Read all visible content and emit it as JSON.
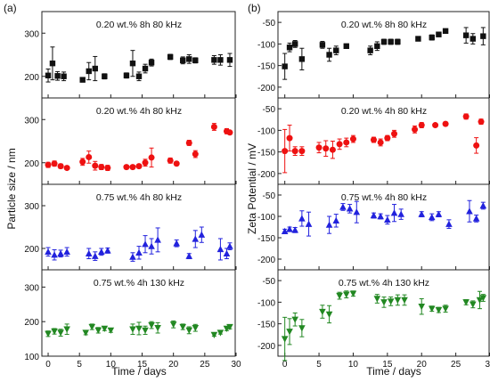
{
  "figure": {
    "panel_a_label": "(a)",
    "panel_b_label": "(b)",
    "left_ylabel": "Particle size / nm",
    "right_ylabel": "Zeta Potential / mV",
    "xlabel": "Time / days"
  },
  "chart_data": [
    {
      "type": "scatter",
      "panel": "a",
      "subplot": 1,
      "annotation": "0.20 wt.% 8h 80 kHz",
      "color": "#111111",
      "marker": "square",
      "xlim": [
        -1,
        30
      ],
      "ylim": [
        150,
        350
      ],
      "xticks": [
        0,
        5,
        10,
        15,
        20,
        25,
        30
      ],
      "yticks": [
        200,
        300
      ],
      "x": [
        0,
        0.7,
        1.5,
        2.5,
        5.5,
        6.5,
        7.5,
        9,
        12.5,
        13.5,
        14.5,
        15.5,
        16.5,
        19.5,
        21.5,
        22.5,
        23.5,
        26.5,
        27.5,
        29
      ],
      "y": [
        202,
        230,
        201,
        200,
        192,
        212,
        218,
        200,
        202,
        230,
        200,
        218,
        232,
        245,
        237,
        240,
        237,
        238,
        238,
        238
      ],
      "err": [
        15,
        38,
        10,
        10,
        5,
        20,
        28,
        6,
        6,
        30,
        10,
        10,
        8,
        6,
        8,
        10,
        6,
        10,
        12,
        15
      ]
    },
    {
      "type": "scatter",
      "panel": "a",
      "subplot": 2,
      "annotation": "0.20 wt.% 4h 80 kHz",
      "color": "#ee1111",
      "marker": "circle",
      "xlim": [
        -1,
        30
      ],
      "ylim": [
        150,
        350
      ],
      "xticks": [
        0,
        5,
        10,
        15,
        20,
        25,
        30
      ],
      "yticks": [
        200,
        300
      ],
      "x": [
        0,
        1,
        2,
        3,
        5.5,
        6.5,
        7.5,
        8.5,
        9.5,
        12.5,
        13.5,
        14.5,
        15.5,
        16.5,
        19.5,
        20.5,
        22.5,
        23.5,
        26.5,
        28.5,
        29
      ],
      "y": [
        195,
        198,
        192,
        188,
        202,
        213,
        193,
        190,
        188,
        190,
        190,
        192,
        200,
        212,
        205,
        198,
        246,
        220,
        283,
        273,
        270
      ],
      "err": [
        6,
        6,
        5,
        4,
        8,
        14,
        10,
        6,
        6,
        4,
        4,
        4,
        8,
        22,
        6,
        4,
        6,
        8,
        8,
        6,
        4
      ]
    },
    {
      "type": "scatter",
      "panel": "a",
      "subplot": 3,
      "annotation": "0.75 wt.% 4h 80 kHz",
      "color": "#2222dd",
      "marker": "triangle-up",
      "xlim": [
        -1,
        30
      ],
      "ylim": [
        150,
        350
      ],
      "xticks": [
        0,
        5,
        10,
        15,
        20,
        25,
        30
      ],
      "yticks": [
        200,
        300
      ],
      "x": [
        0,
        1,
        2,
        3,
        6.5,
        7.5,
        8.5,
        9.5,
        13.5,
        14.5,
        15.5,
        16.5,
        17.5,
        20.5,
        22.5,
        23.5,
        24.5,
        27.5,
        28.5,
        29
      ],
      "y": [
        192,
        185,
        188,
        192,
        188,
        182,
        192,
        195,
        180,
        190,
        210,
        205,
        220,
        212,
        182,
        222,
        232,
        198,
        188,
        205
      ],
      "err": [
        10,
        12,
        8,
        10,
        12,
        10,
        8,
        6,
        10,
        15,
        20,
        18,
        28,
        8,
        6,
        20,
        18,
        25,
        12,
        8
      ]
    },
    {
      "type": "scatter",
      "panel": "a",
      "subplot": 4,
      "annotation": "0.75 wt.% 4h 130 kHz",
      "color": "#228822",
      "marker": "triangle-down",
      "xlim": [
        -1,
        30
      ],
      "ylim": [
        100,
        350
      ],
      "xticks": [
        0,
        5,
        10,
        15,
        20,
        25,
        30
      ],
      "yticks": [
        100,
        200,
        300
      ],
      "x": [
        0,
        1,
        2,
        3,
        6,
        7,
        8,
        9,
        10,
        13.5,
        14.5,
        15.5,
        16.5,
        17.5,
        20,
        21.5,
        22.5,
        23.5,
        26.5,
        27.5,
        28.5,
        29
      ],
      "y": [
        165,
        172,
        168,
        178,
        168,
        185,
        175,
        180,
        175,
        178,
        180,
        175,
        190,
        182,
        192,
        185,
        175,
        182,
        162,
        168,
        180,
        185
      ],
      "err": [
        8,
        8,
        10,
        15,
        6,
        8,
        8,
        6,
        6,
        15,
        18,
        12,
        10,
        15,
        10,
        8,
        10,
        10,
        4,
        4,
        6,
        6
      ]
    },
    {
      "type": "scatter",
      "panel": "b",
      "subplot": 1,
      "annotation": "0.20 wt.% 8h 80 kHz",
      "color": "#111111",
      "marker": "square",
      "xlim": [
        -1,
        30
      ],
      "ylim": [
        -225,
        -25
      ],
      "xticks": [
        0,
        5,
        10,
        15,
        20,
        25,
        30
      ],
      "yticks": [
        -200,
        -150,
        -100,
        -50
      ],
      "x": [
        0,
        0.7,
        1.5,
        2.5,
        5.5,
        6.5,
        7.5,
        9,
        12.5,
        13.5,
        14.5,
        15.5,
        16.5,
        19.5,
        21.5,
        22.5,
        23.5,
        26.5,
        27.5,
        29
      ],
      "y": [
        -152,
        -108,
        -100,
        -135,
        -102,
        -125,
        -115,
        -105,
        -115,
        -105,
        -95,
        -95,
        -95,
        -88,
        -85,
        -78,
        -70,
        -80,
        -88,
        -82
      ],
      "err": [
        30,
        10,
        8,
        25,
        8,
        15,
        10,
        5,
        10,
        10,
        6,
        6,
        6,
        5,
        6,
        5,
        5,
        18,
        12,
        20
      ]
    },
    {
      "type": "scatter",
      "panel": "b",
      "subplot": 2,
      "annotation": "0.20 wt.% 4h 80 kHz",
      "color": "#ee1111",
      "marker": "circle",
      "xlim": [
        -1,
        30
      ],
      "ylim": [
        -225,
        -25
      ],
      "xticks": [
        0,
        5,
        10,
        15,
        20,
        25,
        30
      ],
      "yticks": [
        -200,
        -150,
        -100,
        -50
      ],
      "x": [
        0,
        0.7,
        1.5,
        2.5,
        5,
        6,
        7,
        8,
        9,
        10,
        13,
        14,
        15,
        16,
        19,
        20,
        22,
        23.5,
        26.5,
        28,
        28.7
      ],
      "y": [
        -148,
        -118,
        -148,
        -148,
        -140,
        -142,
        -145,
        -132,
        -128,
        -120,
        -122,
        -128,
        -118,
        -108,
        -98,
        -88,
        -88,
        -85,
        -68,
        -135,
        -80
      ],
      "err": [
        50,
        30,
        10,
        10,
        12,
        18,
        20,
        12,
        10,
        8,
        6,
        8,
        6,
        8,
        8,
        6,
        4,
        4,
        6,
        18,
        6
      ]
    },
    {
      "type": "scatter",
      "panel": "b",
      "subplot": 3,
      "annotation": "0.75 wt.% 4h 80 kHz",
      "color": "#2222dd",
      "marker": "triangle-up",
      "xlim": [
        -1,
        30
      ],
      "ylim": [
        -225,
        -25
      ],
      "xticks": [
        0,
        5,
        10,
        15,
        20,
        25,
        30
      ],
      "yticks": [
        -200,
        -150,
        -100,
        -50
      ],
      "x": [
        0,
        0.7,
        1.5,
        2.5,
        3.5,
        6.5,
        7.5,
        8.5,
        9.5,
        10.5,
        13,
        14,
        15,
        16,
        17,
        20,
        21.5,
        22.5,
        24,
        27,
        28,
        29
      ],
      "y": [
        -135,
        -130,
        -132,
        -105,
        -118,
        -120,
        -110,
        -78,
        -82,
        -90,
        -98,
        -100,
        -108,
        -92,
        -95,
        -95,
        -102,
        -95,
        -118,
        -88,
        -105,
        -75
      ],
      "err": [
        5,
        5,
        6,
        18,
        28,
        20,
        15,
        8,
        10,
        25,
        6,
        6,
        10,
        20,
        12,
        6,
        8,
        6,
        10,
        25,
        8,
        8
      ]
    },
    {
      "type": "scatter",
      "panel": "b",
      "subplot": 4,
      "annotation": "0.75 wt.% 4h 130 kHz",
      "color": "#228822",
      "marker": "triangle-down",
      "xlim": [
        -1,
        30
      ],
      "ylim": [
        -225,
        -25
      ],
      "xticks": [
        0,
        5,
        10,
        15,
        20,
        25,
        30
      ],
      "yticks": [
        -200,
        -150,
        -100,
        -50
      ],
      "x": [
        0,
        0.7,
        1.5,
        2.5,
        5.5,
        6.5,
        8,
        9,
        10,
        13.5,
        14.5,
        15.5,
        16.5,
        17.5,
        20,
        21.5,
        22.5,
        23.5,
        26.5,
        27.5,
        28.5,
        29
      ],
      "y": [
        -185,
        -168,
        -140,
        -160,
        -122,
        -128,
        -85,
        -82,
        -80,
        -92,
        -100,
        -98,
        -95,
        -95,
        -110,
        -115,
        -118,
        -115,
        -100,
        -105,
        -95,
        -90
      ],
      "err": [
        50,
        30,
        15,
        20,
        15,
        20,
        8,
        8,
        6,
        10,
        12,
        10,
        12,
        12,
        18,
        6,
        6,
        8,
        6,
        8,
        20,
        8
      ]
    }
  ]
}
